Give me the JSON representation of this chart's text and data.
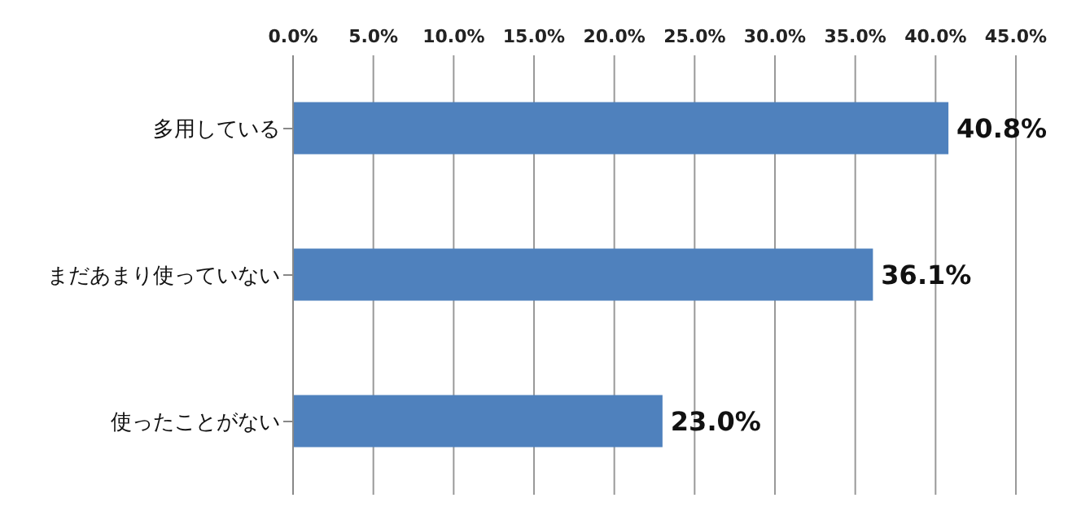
{
  "chart_data": {
    "type": "bar",
    "orientation": "horizontal",
    "categories": [
      "多用している",
      "まだあまり使っていない",
      "使ったことがない"
    ],
    "values": [
      40.8,
      36.1,
      23.0
    ],
    "color": "#4f81bd",
    "value_labels": [
      "40.8%",
      "36.1%",
      "23.0%"
    ],
    "xlim": [
      0,
      45
    ],
    "xticks": [
      {
        "value": 0,
        "label": "0.0%"
      },
      {
        "value": 5,
        "label": "5.0%"
      },
      {
        "value": 10,
        "label": "10.0%"
      },
      {
        "value": 15,
        "label": "15.0%"
      },
      {
        "value": 20,
        "label": "20.0%"
      },
      {
        "value": 25,
        "label": "25.0%"
      },
      {
        "value": 30,
        "label": "30.0%"
      },
      {
        "value": 35,
        "label": "35.0%"
      },
      {
        "value": 40,
        "label": "40.0%"
      },
      {
        "value": 45,
        "label": "45.0%"
      }
    ],
    "grid": "x",
    "legend": false
  }
}
